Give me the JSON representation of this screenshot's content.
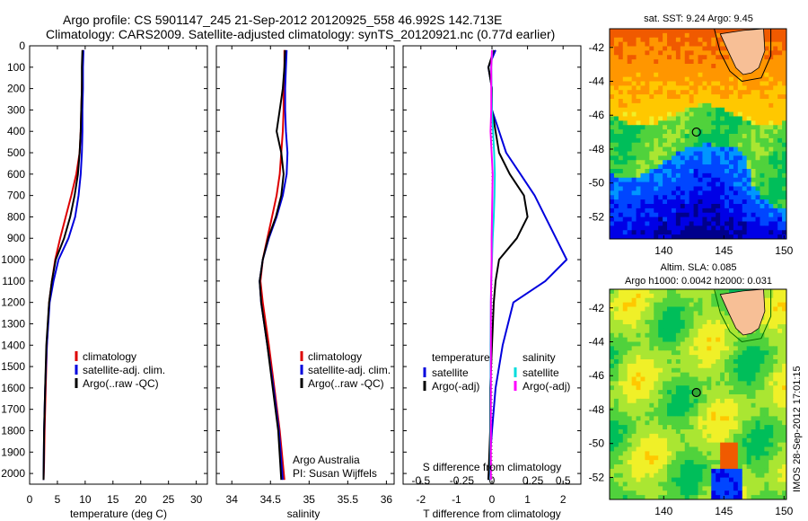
{
  "header": {
    "title_line1": "Argo profile: CS 5901147_245 21-Sep-2012 20120925_558 46.992S 142.713E",
    "title_line2": "Climatology: CARS2009. Satellite-adjusted climatology: synTS_20120921.nc (0.77d earlier)"
  },
  "side_stamp": "IMOS 28-Sep-2012 17:01:15",
  "chart_data": [
    {
      "type": "line",
      "id": "temperature",
      "xlabel": "temperature (deg C)",
      "ylabel": "",
      "xlim": [
        0,
        32
      ],
      "ylim": [
        2050,
        0
      ],
      "xticks": [
        0,
        5,
        10,
        15,
        20,
        25,
        30
      ],
      "yticks": [
        0,
        100,
        200,
        300,
        400,
        500,
        600,
        700,
        800,
        900,
        1000,
        1100,
        1200,
        1300,
        1400,
        1500,
        1600,
        1700,
        1800,
        1900,
        2000
      ],
      "legend": [
        "climatology",
        "satellite-adj. clim.",
        "Argo(..raw -QC)"
      ],
      "legend_colors": [
        "#dd0000",
        "#0000dd",
        "#000000"
      ],
      "series": [
        {
          "name": "climatology",
          "color": "#dd0000",
          "x": [
            9.6,
            9.5,
            9.4,
            9.3,
            9.2,
            9.0,
            8.4,
            7.5,
            6.5,
            5.5,
            4.6,
            4.0,
            3.5,
            3.1,
            2.9,
            2.7,
            2.6,
            2.5
          ],
          "y": [
            20,
            100,
            200,
            300,
            400,
            500,
            600,
            700,
            800,
            900,
            1000,
            1100,
            1200,
            1400,
            1600,
            1800,
            1950,
            2030
          ]
        },
        {
          "name": "satellite-adj. clim.",
          "color": "#0000dd",
          "x": [
            9.7,
            9.6,
            9.6,
            9.5,
            9.5,
            9.4,
            9.2,
            8.8,
            8.2,
            7.0,
            5.2,
            4.3,
            3.6,
            3.1,
            2.8,
            2.6,
            2.5
          ],
          "y": [
            20,
            100,
            200,
            300,
            400,
            500,
            600,
            700,
            800,
            900,
            1000,
            1100,
            1200,
            1400,
            1600,
            1800,
            2030
          ]
        },
        {
          "name": "Argo(..raw -QC)",
          "color": "#000000",
          "x": [
            9.5,
            9.4,
            9.4,
            9.3,
            9.2,
            9.0,
            8.7,
            8.1,
            7.3,
            6.2,
            4.7,
            4.0,
            3.5,
            3.0,
            2.8,
            2.6,
            2.5
          ],
          "y": [
            20,
            100,
            200,
            300,
            400,
            500,
            600,
            700,
            800,
            900,
            1000,
            1100,
            1200,
            1400,
            1600,
            1800,
            2030
          ]
        }
      ]
    },
    {
      "type": "line",
      "id": "salinity",
      "xlabel": "salinity",
      "xlim": [
        33.8,
        36.1
      ],
      "ylim": [
        2050,
        0
      ],
      "xticks": [
        34,
        34.5,
        35,
        35.5,
        36
      ],
      "legend": [
        "climatology",
        "satellite-adj. clim.",
        "Argo(..raw -QC)"
      ],
      "legend_colors": [
        "#dd0000",
        "#0000dd",
        "#000000"
      ],
      "annotation_line1": "Argo Australia",
      "annotation_line2": "PI: Susan Wijffels",
      "series": [
        {
          "name": "climatology",
          "color": "#dd0000",
          "x": [
            34.68,
            34.68,
            34.67,
            34.67,
            34.66,
            34.64,
            34.62,
            34.58,
            34.52,
            34.46,
            34.4,
            34.37,
            34.4,
            34.48,
            34.55,
            34.62,
            34.68
          ],
          "y": [
            20,
            100,
            200,
            300,
            400,
            500,
            600,
            700,
            800,
            900,
            1000,
            1100,
            1200,
            1400,
            1600,
            1800,
            2030
          ]
        },
        {
          "name": "satellite-adj. clim.",
          "color": "#0000dd",
          "x": [
            34.71,
            34.7,
            34.69,
            34.69,
            34.7,
            34.72,
            34.71,
            34.66,
            34.58,
            34.48,
            34.4,
            34.36,
            34.38,
            34.46,
            34.54,
            34.61,
            34.66
          ],
          "y": [
            20,
            100,
            200,
            300,
            400,
            500,
            600,
            700,
            800,
            900,
            1000,
            1100,
            1200,
            1400,
            1600,
            1800,
            2030
          ]
        },
        {
          "name": "Argo(..raw -QC)",
          "color": "#000000",
          "x": [
            34.69,
            34.68,
            34.66,
            34.62,
            34.58,
            34.64,
            34.67,
            34.64,
            34.57,
            34.47,
            34.4,
            34.36,
            34.38,
            34.46,
            34.53,
            34.6,
            34.64
          ],
          "y": [
            20,
            100,
            200,
            300,
            400,
            500,
            600,
            700,
            800,
            900,
            1000,
            1100,
            1200,
            1400,
            1600,
            1800,
            2030
          ]
        }
      ]
    },
    {
      "type": "line",
      "id": "differences",
      "xlabel": "T difference from climatology",
      "xlabel_top": "S difference from climatology",
      "xlim": [
        -2.5,
        2.5
      ],
      "ylim": [
        2050,
        0
      ],
      "xticks": [
        -2,
        -1,
        0,
        1,
        2
      ],
      "xticks_top": [
        "-0.5",
        "-0.25",
        "0",
        "0.25",
        "0.5"
      ],
      "legend_temperature": {
        "title": "temperature",
        "items": [
          "satellite",
          "Argo(-adj)"
        ],
        "colors": [
          "#0000dd",
          "#000000"
        ]
      },
      "legend_salinity": {
        "title": "salinity",
        "items": [
          "satellite",
          "Argo(-adj)"
        ],
        "colors": [
          "#00dddd",
          "#ff00ff"
        ]
      },
      "series": [
        {
          "name": "T satellite",
          "color": "#0000dd",
          "x": [
            0.1,
            -0.1,
            0.0,
            0.0,
            0.2,
            0.4,
            0.8,
            1.2,
            1.5,
            1.8,
            2.1,
            1.5,
            0.6,
            0.3,
            0.1,
            0.0,
            -0.1
          ],
          "y": [
            20,
            100,
            200,
            300,
            400,
            500,
            600,
            700,
            800,
            900,
            1000,
            1100,
            1200,
            1400,
            1600,
            1800,
            2030
          ]
        },
        {
          "name": "T Argo(-adj)",
          "color": "#000000",
          "x": [
            0.05,
            -0.1,
            0.0,
            0.0,
            0.1,
            0.2,
            0.5,
            0.9,
            1.0,
            0.7,
            0.2,
            0.1,
            0.05,
            0.0,
            -0.05,
            -0.05,
            -0.1
          ],
          "y": [
            20,
            100,
            200,
            300,
            400,
            500,
            600,
            700,
            800,
            900,
            1000,
            1100,
            1200,
            1400,
            1600,
            1800,
            2030
          ]
        },
        {
          "name": "S satellite",
          "color": "#00dddd",
          "x": [
            0.01,
            -0.02,
            -0.01,
            0.0,
            0.03,
            0.06,
            0.08,
            0.07,
            0.05,
            0.02,
            0.0,
            -0.02,
            -0.03,
            -0.04,
            -0.04,
            -0.04,
            -0.04
          ],
          "y": [
            20,
            100,
            200,
            300,
            400,
            500,
            600,
            700,
            800,
            900,
            1000,
            1100,
            1200,
            1400,
            1600,
            1800,
            2030
          ]
        },
        {
          "name": "S Argo(-adj)",
          "color": "#ff00ff",
          "x": [
            0.0,
            -0.02,
            -0.02,
            -0.02,
            -0.04,
            -0.01,
            0.02,
            0.01,
            0.0,
            -0.01,
            -0.01,
            -0.02,
            -0.03,
            -0.03,
            -0.03,
            -0.03,
            -0.03
          ],
          "y": [
            20,
            100,
            200,
            300,
            400,
            500,
            600,
            700,
            800,
            900,
            1000,
            1100,
            1200,
            1400,
            1600,
            1800,
            2030
          ]
        }
      ]
    },
    {
      "type": "heatmap",
      "id": "sst-map",
      "title": "sat. SST: 9.24  Argo: 9.45",
      "xlim": [
        135.5,
        150.2
      ],
      "ylim": [
        -53.3,
        -40.9
      ],
      "xticks": [
        140,
        145,
        150
      ],
      "yticks": [
        -42,
        -44,
        -46,
        -48,
        -50,
        -52
      ],
      "float_position": {
        "lon": 142.713,
        "lat": -46.992
      },
      "colormap": "jet"
    },
    {
      "type": "heatmap",
      "id": "sla-map",
      "title_line1": "Altim. SLA: 0.085",
      "title_line2": "Argo h1000: 0.0042 h2000: 0.031",
      "xlim": [
        135.5,
        150.2
      ],
      "ylim": [
        -53.3,
        -40.9
      ],
      "xticks": [
        140,
        145,
        150
      ],
      "yticks": [
        -42,
        -44,
        -46,
        -48,
        -50,
        -52
      ],
      "float_position": {
        "lon": 142.713,
        "lat": -46.992
      },
      "colormap": "jet"
    }
  ]
}
